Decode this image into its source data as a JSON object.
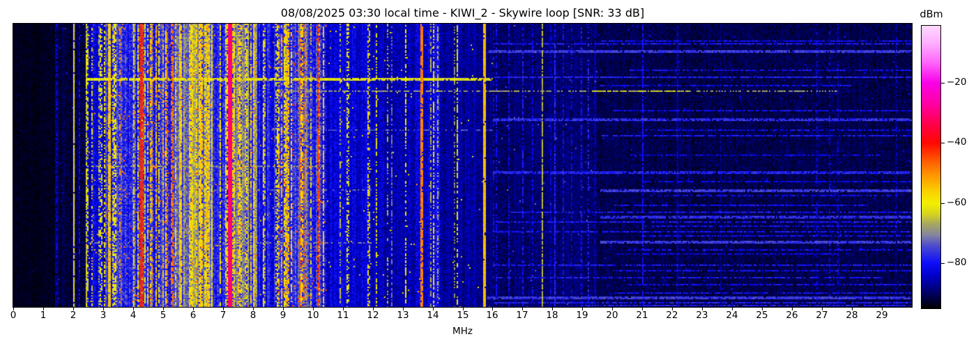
{
  "title": "08/08/2025 03:30 local time - KIWI_2 - Skywire loop [SNR: 33 dB]",
  "colors": {
    "background": "#ffffff",
    "frame": "#000000",
    "text": "#000000"
  },
  "xaxis": {
    "label": "MHz",
    "range_mhz": [
      0,
      30
    ],
    "tick_labels": [
      "0",
      "1",
      "2",
      "3",
      "4",
      "5",
      "6",
      "7",
      "8",
      "9",
      "10",
      "11",
      "12",
      "13",
      "14",
      "15",
      "16",
      "17",
      "18",
      "19",
      "20",
      "21",
      "22",
      "23",
      "24",
      "25",
      "26",
      "27",
      "28",
      "29"
    ]
  },
  "colorbar": {
    "label": "dBm",
    "tick_labels": [
      "−20",
      "−40",
      "−60",
      "−80"
    ],
    "tick_values": [
      -20,
      -40,
      -60,
      -80
    ],
    "vmax_dbm": -1,
    "vmin_dbm": -95
  },
  "chart_data": {
    "type": "heatmap",
    "title": "08/08/2025 03:30 local time - KIWI_2 - Skywire loop [SNR: 33 dB]",
    "xlabel": "MHz",
    "ylabel": "",
    "colorbar_label": "dBm",
    "x_range_mhz": [
      0,
      30
    ],
    "level_range_dbm": [
      -95,
      -1
    ],
    "snr_db": 33,
    "seed": 1337,
    "colormap_stops": [
      [
        0.0,
        "#ffd9ff"
      ],
      [
        0.06,
        "#ffb0ff"
      ],
      [
        0.13,
        "#ff66fb"
      ],
      [
        0.202,
        "#f800e8"
      ],
      [
        0.28,
        "#ff009e"
      ],
      [
        0.35,
        "#ff0048"
      ],
      [
        0.415,
        "#ff0800"
      ],
      [
        0.47,
        "#ff5000"
      ],
      [
        0.53,
        "#ff9800"
      ],
      [
        0.585,
        "#fbcf00"
      ],
      [
        0.628,
        "#f2ef00"
      ],
      [
        0.665,
        "#d6d51e"
      ],
      [
        0.7,
        "#a8a85e"
      ],
      [
        0.74,
        "#85859e"
      ],
      [
        0.78,
        "#4a4ad0"
      ],
      [
        0.84,
        "#0d0dfa"
      ],
      [
        0.885,
        "#0000c8"
      ],
      [
        0.93,
        "#000080"
      ],
      [
        1.0,
        "#000000"
      ]
    ],
    "bands": [
      {
        "f0": 0.0,
        "f1": 1.45,
        "base": -93.5,
        "cv": 0.5,
        "pv": 1.2,
        "bp": 0.02,
        "bl": -88,
        "duty": 0.3,
        "hp": 0.002,
        "hl": -85
      },
      {
        "f0": 1.45,
        "f1": 1.95,
        "base": -92,
        "cv": 1.2,
        "pv": 2.2,
        "bp": 0.1,
        "bl": -83,
        "duty": 0.5,
        "hp": 0.004,
        "hl": -80
      },
      {
        "f0": 1.95,
        "f1": 2.4,
        "base": -91,
        "cv": 1.5,
        "pv": 2.5,
        "bp": 0.12,
        "bl": -82,
        "duty": 0.5,
        "hp": 0.004,
        "hl": -78
      },
      {
        "f0": 2.4,
        "f1": 3.05,
        "base": -83,
        "cv": 4,
        "pv": 4,
        "bp": 0.3,
        "bl": -63,
        "duty": 0.5,
        "hp": 0.01,
        "hl": -52
      },
      {
        "f0": 3.05,
        "f1": 4.2,
        "base": -78,
        "cv": 5,
        "pv": 5,
        "bp": 0.4,
        "bl": -60,
        "duty": 0.6,
        "hp": 0.02,
        "hl": -48
      },
      {
        "f0": 4.2,
        "f1": 5.45,
        "base": -77,
        "cv": 5,
        "pv": 5,
        "bp": 0.42,
        "bl": -58,
        "duty": 0.6,
        "hp": 0.025,
        "hl": -46
      },
      {
        "f0": 5.45,
        "f1": 6.65,
        "base": -72,
        "cv": 6,
        "pv": 5,
        "bp": 0.52,
        "bl": -57,
        "duty": 0.65,
        "hp": 0.02,
        "hl": -47
      },
      {
        "f0": 6.65,
        "f1": 7.1,
        "base": -76,
        "cv": 5,
        "pv": 4.5,
        "bp": 0.35,
        "bl": -60,
        "duty": 0.6,
        "hp": 0.012,
        "hl": -50
      },
      {
        "f0": 7.1,
        "f1": 8.15,
        "base": -73,
        "cv": 6,
        "pv": 5,
        "bp": 0.45,
        "bl": -58,
        "duty": 0.6,
        "hp": 0.02,
        "hl": -48
      },
      {
        "f0": 8.15,
        "f1": 8.85,
        "base": -80,
        "cv": 4,
        "pv": 4,
        "bp": 0.25,
        "bl": -62,
        "duty": 0.5,
        "hp": 0.008,
        "hl": -52
      },
      {
        "f0": 8.85,
        "f1": 9.8,
        "base": -75,
        "cv": 5,
        "pv": 5,
        "bp": 0.4,
        "bl": -57,
        "duty": 0.6,
        "hp": 0.03,
        "hl": -45
      },
      {
        "f0": 9.8,
        "f1": 10.45,
        "base": -78,
        "cv": 5,
        "pv": 5,
        "bp": 0.3,
        "bl": -60,
        "duty": 0.55,
        "hp": 0.02,
        "hl": -47
      },
      {
        "f0": 10.45,
        "f1": 11.95,
        "base": -83.5,
        "cv": 2.5,
        "pv": 3.5,
        "bp": 0.12,
        "bl": -66,
        "duty": 0.45,
        "hp": 0.004,
        "hl": -56
      },
      {
        "f0": 11.95,
        "f1": 13.45,
        "base": -85,
        "cv": 2,
        "pv": 3.5,
        "bp": 0.09,
        "bl": -68,
        "duty": 0.4,
        "hp": 0.004,
        "hl": -56
      },
      {
        "f0": 13.45,
        "f1": 14.25,
        "base": -83,
        "cv": 3,
        "pv": 4,
        "bp": 0.15,
        "bl": -64,
        "duty": 0.5,
        "hp": 0.006,
        "hl": -54
      },
      {
        "f0": 14.25,
        "f1": 15.55,
        "base": -87,
        "cv": 2,
        "pv": 3,
        "bp": 0.07,
        "bl": -72,
        "duty": 0.4,
        "hp": 0.003,
        "hl": -62
      },
      {
        "f0": 15.55,
        "f1": 16.0,
        "base": -88.5,
        "cv": 1.5,
        "pv": 2.8,
        "bp": 0.05,
        "bl": -76,
        "duty": 0.4,
        "hp": 0.002,
        "hl": -68
      },
      {
        "f0": 16.0,
        "f1": 19.5,
        "base": -89.5,
        "cv": 1.2,
        "pv": 2.5,
        "bp": 0.07,
        "bl": -80,
        "duty": 0.45,
        "hp": 0.003,
        "hl": -74
      },
      {
        "f0": 19.5,
        "f1": 30.0,
        "base": -91,
        "cv": 0.8,
        "pv": 2.3,
        "bp": 0.04,
        "bl": -84,
        "duty": 0.4,
        "hp": 0.006,
        "hl": -82
      }
    ],
    "vertical_lines": [
      {
        "mhz": 1.44,
        "level": -86,
        "w": 1,
        "duty": 0.8
      },
      {
        "mhz": 2.02,
        "level": -58,
        "w": 2,
        "duty": 0.95
      },
      {
        "mhz": 2.46,
        "level": -67,
        "w": 2,
        "duty": 0.7
      },
      {
        "mhz": 3.22,
        "level": -55,
        "w": 3,
        "duty": 0.75
      },
      {
        "mhz": 3.56,
        "level": -50,
        "w": 2,
        "duty": 0.45
      },
      {
        "mhz": 4.28,
        "level": -42,
        "w": 4,
        "duty": 0.97
      },
      {
        "mhz": 4.65,
        "level": -52,
        "w": 2,
        "duty": 0.6
      },
      {
        "mhz": 5.15,
        "level": -46,
        "w": 2,
        "duty": 0.7
      },
      {
        "mhz": 5.32,
        "level": -48,
        "w": 3,
        "duty": 0.65
      },
      {
        "mhz": 5.62,
        "level": -55,
        "w": 2,
        "duty": 0.6
      },
      {
        "mhz": 6.25,
        "level": -56,
        "w": 4,
        "duty": 0.8
      },
      {
        "mhz": 6.47,
        "level": -52,
        "w": 2,
        "duty": 0.55
      },
      {
        "mhz": 7.22,
        "level": -31,
        "w": 6,
        "duty": 1.0
      },
      {
        "mhz": 7.62,
        "level": -55,
        "w": 2,
        "duty": 0.6
      },
      {
        "mhz": 8.0,
        "level": -56,
        "w": 2,
        "duty": 0.6
      },
      {
        "mhz": 8.35,
        "level": -57,
        "w": 2,
        "duty": 0.65
      },
      {
        "mhz": 9.15,
        "level": -52,
        "w": 2,
        "duty": 0.5
      },
      {
        "mhz": 9.56,
        "level": -45,
        "w": 2,
        "duty": 0.55
      },
      {
        "mhz": 9.74,
        "level": -48,
        "w": 1,
        "duty": 0.8
      },
      {
        "mhz": 10.18,
        "level": -44,
        "w": 3,
        "duty": 0.7
      },
      {
        "mhz": 10.34,
        "level": -57,
        "w": 2,
        "duty": 0.55
      },
      {
        "mhz": 11.12,
        "level": -60,
        "w": 2,
        "duty": 0.5
      },
      {
        "mhz": 11.86,
        "level": -58,
        "w": 2,
        "duty": 0.55
      },
      {
        "mhz": 12.12,
        "level": -62,
        "w": 1,
        "duty": 0.5
      },
      {
        "mhz": 12.65,
        "level": -72,
        "w": 1,
        "duty": 0.5
      },
      {
        "mhz": 13.1,
        "level": -60,
        "w": 2,
        "duty": 0.5
      },
      {
        "mhz": 13.62,
        "level": -49,
        "w": 3,
        "duty": 0.9
      },
      {
        "mhz": 14.02,
        "level": -58,
        "w": 2,
        "duty": 0.6
      },
      {
        "mhz": 14.8,
        "level": -62,
        "w": 1,
        "duty": 0.6
      },
      {
        "mhz": 15.72,
        "level": -54,
        "w": 3,
        "duty": 0.97
      },
      {
        "mhz": 16.12,
        "level": -80,
        "w": 1,
        "duty": 0.6
      },
      {
        "mhz": 16.55,
        "level": -80,
        "w": 1,
        "duty": 0.5
      },
      {
        "mhz": 17.0,
        "level": -79,
        "w": 1,
        "duty": 0.6
      },
      {
        "mhz": 17.32,
        "level": -80,
        "w": 1,
        "duty": 0.5
      },
      {
        "mhz": 17.66,
        "level": -66,
        "w": 1,
        "duty": 0.85
      },
      {
        "mhz": 18.05,
        "level": -78,
        "w": 1,
        "duty": 0.7
      },
      {
        "mhz": 18.35,
        "level": -80,
        "w": 1,
        "duty": 0.5
      },
      {
        "mhz": 18.62,
        "level": -81,
        "w": 1,
        "duty": 0.5
      },
      {
        "mhz": 19.4,
        "level": -84,
        "w": 1,
        "duty": 0.7
      },
      {
        "mhz": 21.0,
        "level": -80,
        "w": 1,
        "duty": 0.6
      },
      {
        "mhz": 22.15,
        "level": -84,
        "w": 1,
        "duty": 0.8
      }
    ],
    "horizontal_streaks": [
      {
        "y": 0.059,
        "f0": 19.6,
        "f1": 30,
        "level": -80,
        "th": 1,
        "duty": 0.8
      },
      {
        "y": 0.071,
        "f0": 16.0,
        "f1": 30,
        "level": -79,
        "th": 1,
        "duty": 0.8
      },
      {
        "y": 0.093,
        "f0": 15.8,
        "f1": 30,
        "level": -76,
        "th": 2,
        "duty": 0.9
      },
      {
        "y": 0.162,
        "f0": 20.5,
        "f1": 30,
        "level": -80,
        "th": 1,
        "duty": 0.75
      },
      {
        "y": 0.187,
        "f0": 16.0,
        "f1": 30,
        "level": -78,
        "th": 1,
        "duty": 0.85
      },
      {
        "y": 0.193,
        "f0": 2.4,
        "f1": 16.0,
        "level": -62,
        "th": 2,
        "duty": 0.88
      },
      {
        "y": 0.216,
        "f0": 19.6,
        "f1": 28,
        "level": -80,
        "th": 1,
        "duty": 0.7
      },
      {
        "y": 0.236,
        "f0": 8.8,
        "f1": 27.5,
        "level": -68,
        "th": 1,
        "duty": 0.6
      },
      {
        "y": 0.236,
        "f0": 19.3,
        "f1": 22.6,
        "level": -63,
        "th": 1,
        "duty": 0.5
      },
      {
        "y": 0.305,
        "f0": 20.0,
        "f1": 30,
        "level": -80,
        "th": 1,
        "duty": 0.75
      },
      {
        "y": 0.332,
        "f0": 16.0,
        "f1": 30,
        "level": -77,
        "th": 2,
        "duty": 0.85
      },
      {
        "y": 0.373,
        "f0": 8.0,
        "f1": 16.0,
        "level": -74,
        "th": 1,
        "duty": 0.5
      },
      {
        "y": 0.373,
        "f0": 21.0,
        "f1": 30,
        "level": -80,
        "th": 1,
        "duty": 0.7
      },
      {
        "y": 0.391,
        "f0": 19.6,
        "f1": 30,
        "level": -79,
        "th": 1,
        "duty": 0.8
      },
      {
        "y": 0.462,
        "f0": 20.5,
        "f1": 29,
        "level": -81,
        "th": 1,
        "duty": 0.65
      },
      {
        "y": 0.5,
        "f0": 2.5,
        "f1": 10.5,
        "level": -68,
        "th": 1,
        "duty": 0.55
      },
      {
        "y": 0.521,
        "f0": 16.0,
        "f1": 30,
        "level": -78,
        "th": 2,
        "duty": 0.85
      },
      {
        "y": 0.555,
        "f0": 21.0,
        "f1": 30,
        "level": -81,
        "th": 1,
        "duty": 0.7
      },
      {
        "y": 0.585,
        "f0": 4.0,
        "f1": 12.0,
        "level": -72,
        "th": 1,
        "duty": 0.5
      },
      {
        "y": 0.585,
        "f0": 19.6,
        "f1": 30,
        "level": -76,
        "th": 2,
        "duty": 0.9
      },
      {
        "y": 0.605,
        "f0": 21.2,
        "f1": 29.5,
        "level": -80,
        "th": 1,
        "duty": 0.7
      },
      {
        "y": 0.636,
        "f0": 20.0,
        "f1": 28.5,
        "level": -80,
        "th": 1,
        "duty": 0.7
      },
      {
        "y": 0.661,
        "f0": 16.5,
        "f1": 30,
        "level": -79,
        "th": 1,
        "duty": 0.75
      },
      {
        "y": 0.678,
        "f0": 19.6,
        "f1": 30,
        "level": -77,
        "th": 2,
        "duty": 0.85
      },
      {
        "y": 0.695,
        "f0": 16.0,
        "f1": 30,
        "level": -79,
        "th": 1,
        "duty": 0.75
      },
      {
        "y": 0.71,
        "f0": 21.0,
        "f1": 29.5,
        "level": -80,
        "th": 1,
        "duty": 0.7
      },
      {
        "y": 0.73,
        "f0": 16.0,
        "f1": 30,
        "level": -79,
        "th": 1,
        "duty": 0.75
      },
      {
        "y": 0.745,
        "f0": 21.0,
        "f1": 30,
        "level": -80,
        "th": 1,
        "duty": 0.7
      },
      {
        "y": 0.764,
        "f0": 19.6,
        "f1": 30,
        "level": -76,
        "th": 2,
        "duty": 0.9
      },
      {
        "y": 0.77,
        "f0": 2.5,
        "f1": 12.0,
        "level": -71,
        "th": 1,
        "duty": 0.5
      },
      {
        "y": 0.794,
        "f0": 20.5,
        "f1": 30,
        "level": -80,
        "th": 1,
        "duty": 0.7
      },
      {
        "y": 0.81,
        "f0": 20.0,
        "f1": 28,
        "level": -81,
        "th": 1,
        "duty": 0.65
      },
      {
        "y": 0.85,
        "f0": 16.0,
        "f1": 30,
        "level": -79,
        "th": 1,
        "duty": 0.75
      },
      {
        "y": 0.87,
        "f0": 20.0,
        "f1": 30,
        "level": -80,
        "th": 1,
        "duty": 0.7
      },
      {
        "y": 0.894,
        "f0": 16.0,
        "f1": 29,
        "level": -79,
        "th": 1,
        "duty": 0.75
      },
      {
        "y": 0.915,
        "f0": 20.5,
        "f1": 30,
        "level": -80,
        "th": 1,
        "duty": 0.7
      },
      {
        "y": 0.944,
        "f0": 20.0,
        "f1": 30,
        "level": -80,
        "th": 1,
        "duty": 0.7
      },
      {
        "y": 0.961,
        "f0": 15.8,
        "f1": 30,
        "level": -76,
        "th": 2,
        "duty": 0.9
      },
      {
        "y": 0.978,
        "f0": 16.0,
        "f1": 30,
        "level": -78,
        "th": 1,
        "duty": 0.8
      },
      {
        "y": 0.99,
        "f0": 18.9,
        "f1": 30,
        "level": -78,
        "th": 1,
        "duty": 0.8
      }
    ]
  }
}
